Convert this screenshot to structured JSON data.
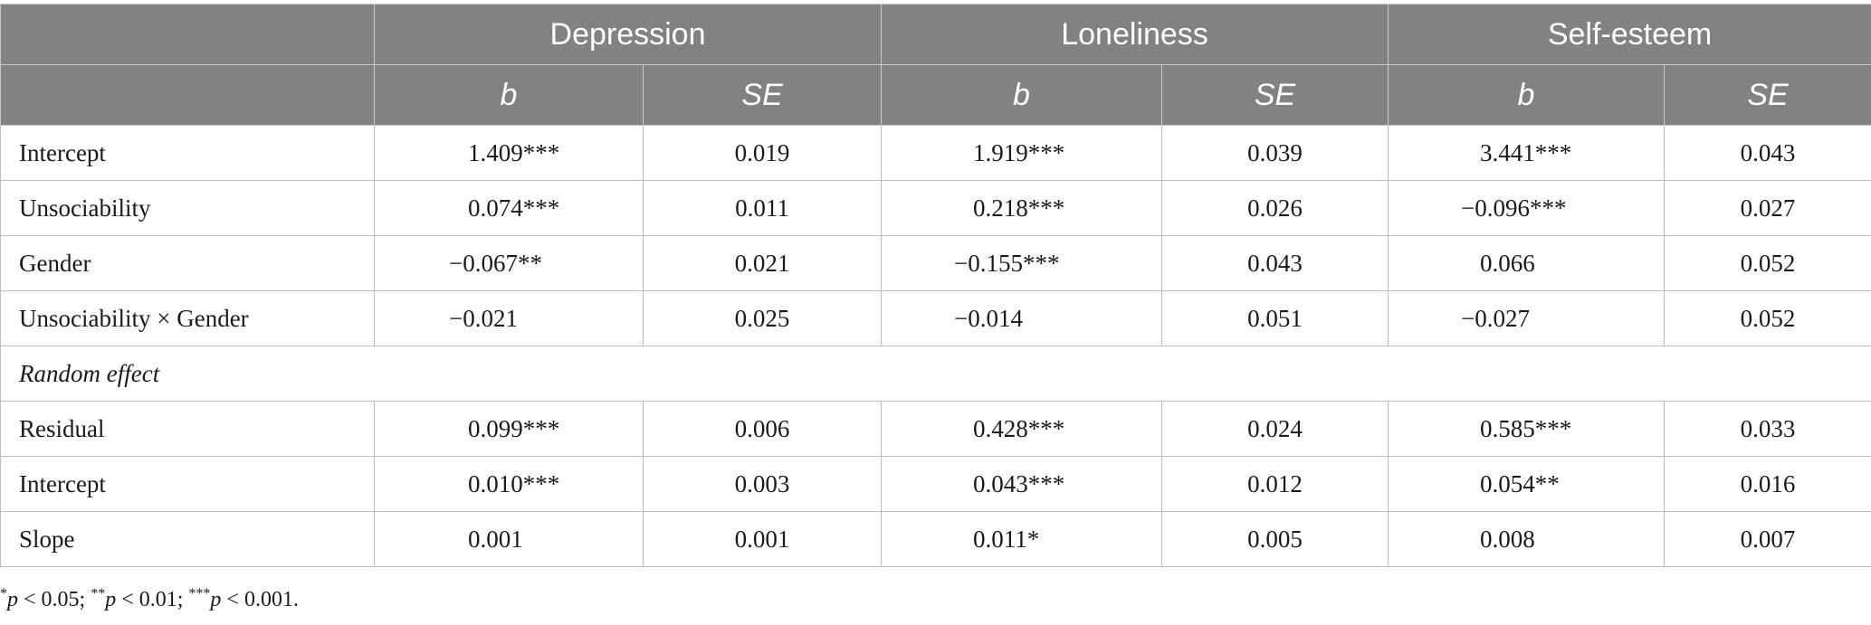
{
  "table": {
    "column_groups": [
      "",
      "Depression",
      "Loneliness",
      "Self-esteem"
    ],
    "sub_headers": [
      "",
      "b",
      "SE",
      "b",
      "SE",
      "b",
      "SE"
    ],
    "rows": [
      {
        "label": "Intercept",
        "cells": [
          "1.409***",
          "0.019",
          "1.919***",
          "0.039",
          "3.441***",
          "0.043"
        ]
      },
      {
        "label": "Unsociability",
        "cells": [
          "0.074***",
          "0.011",
          "0.218***",
          "0.026",
          "−0.096***",
          "0.027"
        ]
      },
      {
        "label": "Gender",
        "cells": [
          "−0.067**",
          "0.021",
          "−0.155***",
          "0.043",
          "0.066",
          "0.052"
        ]
      },
      {
        "label": "Unsociability × Gender",
        "cells": [
          "−0.021",
          "0.025",
          "−0.014",
          "0.051",
          "−0.027",
          "0.052"
        ]
      }
    ],
    "section_label": "Random effect",
    "random_rows": [
      {
        "label": "Residual",
        "cells": [
          "0.099***",
          "0.006",
          "0.428***",
          "0.024",
          "0.585***",
          "0.033"
        ]
      },
      {
        "label": "Intercept",
        "cells": [
          "0.010***",
          "0.003",
          "0.043***",
          "0.012",
          "0.054**",
          "0.016"
        ]
      },
      {
        "label": "Slope",
        "cells": [
          "0.001",
          "0.001",
          "0.011*",
          "0.005",
          "0.008",
          "0.007"
        ]
      }
    ]
  },
  "footnote": {
    "s1": "*",
    "p1": "p",
    "t1": " < 0.05; ",
    "s2": "**",
    "p2": "p",
    "t2": " < 0.01; ",
    "s3": "***",
    "p3": "p",
    "t3": " < 0.001."
  }
}
